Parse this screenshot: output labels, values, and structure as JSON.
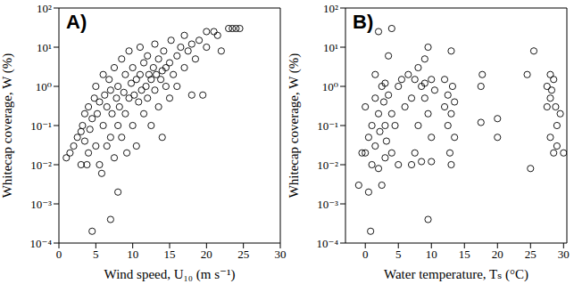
{
  "chart_data": [
    {
      "type": "scatter",
      "title": "A)",
      "x_label": "Wind speed, U₁₀ (m s⁻¹)",
      "y_label": "Whitecap coverage, W (%)",
      "log": "y",
      "marker": "open circle",
      "color": "#000000",
      "xlim": [
        0,
        30
      ],
      "xticks": [
        0,
        5,
        10,
        15,
        20,
        25,
        30
      ],
      "ylim": [
        0.0001,
        100
      ],
      "yticks": [
        {
          "value": 0.0001,
          "label": "10⁻⁴"
        },
        {
          "value": 0.001,
          "label": "10⁻³"
        },
        {
          "value": 0.01,
          "label": "10⁻²"
        },
        {
          "value": 0.1,
          "label": "10⁻¹"
        },
        {
          "value": 1,
          "label": "10⁰"
        },
        {
          "value": 10,
          "label": "10¹"
        },
        {
          "value": 100,
          "label": "10²"
        }
      ],
      "x": [
        1,
        1.5,
        2,
        2.5,
        3,
        3,
        3.2,
        3.5,
        3.5,
        3.8,
        4,
        4,
        4.2,
        4.5,
        4.5,
        4.8,
        5,
        5,
        5.2,
        5.5,
        5.5,
        5.8,
        6,
        6,
        6.2,
        6.5,
        6.5,
        6.8,
        7,
        7,
        7,
        7.2,
        7.5,
        7.5,
        7.8,
        8,
        8,
        8,
        8.2,
        8.5,
        8.5,
        8.8,
        9,
        9,
        9.2,
        9.5,
        9.5,
        9.8,
        10,
        10,
        10.2,
        10.5,
        10.5,
        10.8,
        11,
        11,
        11.2,
        11.5,
        11.5,
        11.8,
        12,
        12,
        12.2,
        12.5,
        12.5,
        12.8,
        13,
        13,
        13.2,
        13.5,
        13.5,
        13.8,
        14,
        14,
        14.2,
        14.5,
        14.5,
        15,
        15,
        15.2,
        15.5,
        16,
        16,
        16.5,
        17,
        17,
        17.5,
        18,
        18,
        18.5,
        19,
        19.5,
        20,
        20,
        21,
        21.5,
        22,
        23,
        23.5,
        24,
        24.5
      ],
      "values": [
        0.015,
        0.02,
        0.03,
        0.05,
        0.01,
        0.07,
        0.1,
        0.2,
        0.04,
        0.01,
        0.3,
        0.02,
        0.08,
        0.0002,
        0.15,
        0.5,
        0.03,
        1,
        0.2,
        0.01,
        0.4,
        0.006,
        0.1,
        2,
        0.6,
        0.03,
        0.3,
        1.5,
        0.0004,
        0.05,
        0.8,
        0.2,
        3,
        0.015,
        0.5,
        0.002,
        0.1,
        1,
        0.3,
        5,
        0.05,
        0.7,
        0.2,
        2,
        0.02,
        0.5,
        8,
        1.2,
        0.1,
        3,
        0.6,
        1.5,
        0.03,
        0.4,
        2,
        10,
        0.8,
        0.2,
        4,
        1,
        0.5,
        6,
        2,
        0.1,
        1.5,
        3,
        0.8,
        12,
        2,
        0.3,
        5,
        1.5,
        2.5,
        0.05,
        8,
        1,
        3,
        4,
        0.5,
        15,
        2,
        6,
        1,
        10,
        3,
        20,
        8,
        12,
        0.6,
        5,
        15,
        0.6,
        25,
        10,
        25,
        20,
        8,
        30,
        30,
        30,
        30
      ]
    },
    {
      "type": "scatter",
      "title": "B)",
      "x_label": "Water temperature, Tₛ (°C)",
      "y_label": "Whitecap coverage, W (%)",
      "log": "y",
      "marker": "open circle",
      "color": "#000000",
      "xlim": [
        -3,
        30.5
      ],
      "xticks": [
        0,
        5,
        10,
        15,
        20,
        25,
        30
      ],
      "ylim": [
        0.0001,
        100
      ],
      "yticks": [
        {
          "value": 0.0001,
          "label": "10⁻⁴"
        },
        {
          "value": 0.001,
          "label": "10⁻³"
        },
        {
          "value": 0.01,
          "label": "10⁻²"
        },
        {
          "value": 0.1,
          "label": "10⁻¹"
        },
        {
          "value": 1,
          "label": "10⁰"
        },
        {
          "value": 10,
          "label": "10¹"
        },
        {
          "value": 100,
          "label": "10²"
        }
      ],
      "x": [
        -1,
        -0.5,
        0,
        0,
        0.5,
        0.5,
        0.8,
        1,
        1,
        1.5,
        1.5,
        1.5,
        2,
        2,
        2,
        2.2,
        2.5,
        2.5,
        2.8,
        3,
        3,
        3,
        3.2,
        3.5,
        3.5,
        4,
        4,
        4,
        4.5,
        5,
        5,
        5.5,
        6,
        6.5,
        7,
        7,
        7.5,
        7.5,
        8,
        8,
        8.5,
        8.5,
        9,
        9,
        9,
        9.5,
        9.5,
        9.5,
        10,
        10,
        10,
        10.5,
        12,
        12,
        12.5,
        12.5,
        12.8,
        13,
        13,
        13,
        13.2,
        13.5,
        13.5,
        17.5,
        17.5,
        17.7,
        20,
        20,
        24.5,
        25,
        25.5,
        27.5,
        27.5,
        28,
        28,
        28,
        28.2,
        28.5,
        28.5,
        28.8,
        29,
        29,
        29.5,
        30
      ],
      "values": [
        0.003,
        0.02,
        0.02,
        0.3,
        0.05,
        0.002,
        0.0002,
        0.1,
        0.01,
        0.5,
        0.03,
        2,
        0.008,
        0.2,
        25,
        0.07,
        1,
        0.003,
        0.4,
        0.015,
        0.1,
        1.2,
        0.04,
        0.6,
        6,
        0.02,
        0.2,
        30,
        0.1,
        1,
        0.01,
        1.5,
        0.3,
        2,
        0.01,
        0.5,
        1.5,
        0.02,
        3,
        0.1,
        1,
        0.012,
        5,
        0.5,
        1.2,
        10,
        0.2,
        0.0004,
        1.5,
        0.05,
        0.012,
        0.8,
        0.3,
        1.5,
        0.1,
        0.6,
        0.02,
        0.01,
        8,
        0.2,
        1,
        0.05,
        0.4,
        0.12,
        1,
        2,
        0.15,
        0.05,
        2,
        0.008,
        8,
        0.3,
        1,
        2,
        0.05,
        0.5,
        0.8,
        0.02,
        1.5,
        0.3,
        0.1,
        0.03,
        0.2,
        0.02
      ]
    }
  ]
}
